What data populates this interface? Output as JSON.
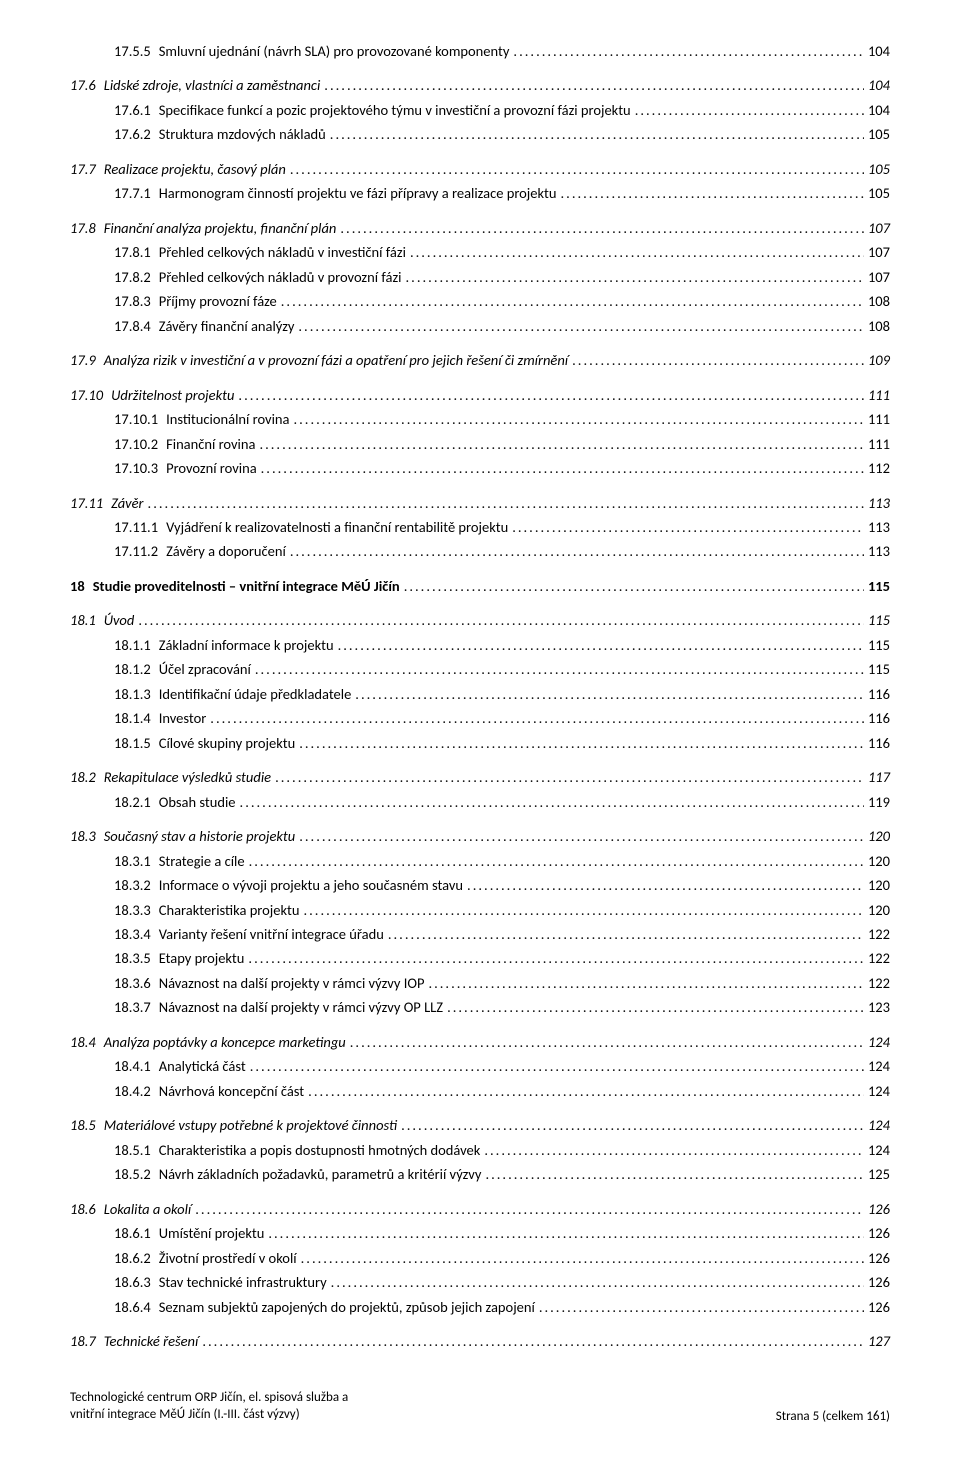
{
  "leader": "........................................................................................................................................................................................................................",
  "toc": [
    {
      "level": 3,
      "num": "17.5.5",
      "title": "Smluvní ujednání (návrh SLA) pro provozované komponenty",
      "page": "104",
      "gapBefore": false
    },
    {
      "level": 2,
      "num": "17.6",
      "title": "Lidské zdroje, vlastníci a zaměstnanci",
      "page": "104",
      "gapBefore": true
    },
    {
      "level": 3,
      "num": "17.6.1",
      "title": "Specifikace funkcí a pozic projektového týmu v investiční a provozní fázi projektu",
      "page": "104"
    },
    {
      "level": 3,
      "num": "17.6.2",
      "title": "Struktura mzdových nákladů",
      "page": "105"
    },
    {
      "level": 2,
      "num": "17.7",
      "title": "Realizace projektu, časový plán",
      "page": "105",
      "gapBefore": true
    },
    {
      "level": 3,
      "num": "17.7.1",
      "title": "Harmonogram činností projektu ve fázi přípravy a realizace projektu",
      "page": "105"
    },
    {
      "level": 2,
      "num": "17.8",
      "title": "Finanční analýza projektu, finanční plán",
      "page": "107",
      "gapBefore": true
    },
    {
      "level": 3,
      "num": "17.8.1",
      "title": "Přehled celkových nákladů v investiční fázi",
      "page": "107"
    },
    {
      "level": 3,
      "num": "17.8.2",
      "title": "Přehled celkových nákladů v provozní fázi",
      "page": "107"
    },
    {
      "level": 3,
      "num": "17.8.3",
      "title": "Příjmy provozní fáze",
      "page": "108"
    },
    {
      "level": 3,
      "num": "17.8.4",
      "title": "Závěry finanční analýzy",
      "page": "108"
    },
    {
      "level": 2,
      "num": "17.9",
      "title": "Analýza rizik v investiční a v provozní fázi a opatření pro jejich řešení či zmírnění",
      "page": "109",
      "gapBefore": true
    },
    {
      "level": 2,
      "num": "17.10",
      "title": "Udržitelnost projektu",
      "page": "111",
      "gapBefore": true
    },
    {
      "level": 3,
      "num": "17.10.1",
      "title": "Institucionální rovina",
      "page": "111"
    },
    {
      "level": 3,
      "num": "17.10.2",
      "title": "Finanční rovina",
      "page": "111"
    },
    {
      "level": 3,
      "num": "17.10.3",
      "title": "Provozní rovina",
      "page": "112"
    },
    {
      "level": 2,
      "num": "17.11",
      "title": "Závěr",
      "page": "113",
      "gapBefore": true
    },
    {
      "level": 3,
      "num": "17.11.1",
      "title": "Vyjádření k realizovatelnosti a finanční rentabilitě projektu",
      "page": "113"
    },
    {
      "level": 3,
      "num": "17.11.2",
      "title": "Závěry a doporučení",
      "page": "113"
    },
    {
      "level": 1,
      "num": "18",
      "title": "Studie proveditelnosti – vnitřní integrace MěÚ Jičín",
      "page": " 115",
      "gapBefore": true
    },
    {
      "level": 2,
      "num": "18.1",
      "title": "Úvod",
      "page": "115",
      "gapBefore": true
    },
    {
      "level": 3,
      "num": "18.1.1",
      "title": "Základní informace k projektu",
      "page": "115"
    },
    {
      "level": 3,
      "num": "18.1.2",
      "title": "Účel zpracování",
      "page": "115"
    },
    {
      "level": 3,
      "num": "18.1.3",
      "title": "Identifikační údaje předkladatele",
      "page": "116"
    },
    {
      "level": 3,
      "num": "18.1.4",
      "title": "Investor",
      "page": "116"
    },
    {
      "level": 3,
      "num": "18.1.5",
      "title": "Cílové skupiny projektu",
      "page": "116"
    },
    {
      "level": 2,
      "num": "18.2",
      "title": "Rekapitulace výsledků studie",
      "page": "117",
      "gapBefore": true
    },
    {
      "level": 3,
      "num": "18.2.1",
      "title": "Obsah studie",
      "page": "119"
    },
    {
      "level": 2,
      "num": "18.3",
      "title": "Současný stav a historie projektu",
      "page": "120",
      "gapBefore": true
    },
    {
      "level": 3,
      "num": "18.3.1",
      "title": "Strategie a cíle",
      "page": "120"
    },
    {
      "level": 3,
      "num": "18.3.2",
      "title": "Informace o vývoji projektu a jeho současném stavu",
      "page": "120"
    },
    {
      "level": 3,
      "num": "18.3.3",
      "title": "Charakteristika projektu",
      "page": "120"
    },
    {
      "level": 3,
      "num": "18.3.4",
      "title": "Varianty řešení vnitřní integrace úřadu",
      "page": "122"
    },
    {
      "level": 3,
      "num": "18.3.5",
      "title": "Etapy projektu",
      "page": "122"
    },
    {
      "level": 3,
      "num": "18.3.6",
      "title": "Návaznost na další projekty v rámci výzvy IOP",
      "page": "122"
    },
    {
      "level": 3,
      "num": "18.3.7",
      "title": "Návaznost na další projekty v rámci výzvy OP LLZ",
      "page": "123"
    },
    {
      "level": 2,
      "num": "18.4",
      "title": "Analýza poptávky a koncepce marketingu",
      "page": "124",
      "gapBefore": true
    },
    {
      "level": 3,
      "num": "18.4.1",
      "title": "Analytická část",
      "page": "124"
    },
    {
      "level": 3,
      "num": "18.4.2",
      "title": "Návrhová koncepční část",
      "page": "124"
    },
    {
      "level": 2,
      "num": "18.5",
      "title": "Materiálové vstupy potřebné k projektové činnosti",
      "page": "124",
      "gapBefore": true
    },
    {
      "level": 3,
      "num": "18.5.1",
      "title": "Charakteristika a popis dostupnosti hmotných dodávek",
      "page": "124"
    },
    {
      "level": 3,
      "num": "18.5.2",
      "title": "Návrh základních požadavků, parametrů a kritérií výzvy",
      "page": "125"
    },
    {
      "level": 2,
      "num": "18.6",
      "title": "Lokalita a okolí",
      "page": "126",
      "gapBefore": true
    },
    {
      "level": 3,
      "num": "18.6.1",
      "title": "Umístění projektu",
      "page": "126"
    },
    {
      "level": 3,
      "num": "18.6.2",
      "title": "Životní prostředí v okolí",
      "page": "126"
    },
    {
      "level": 3,
      "num": "18.6.3",
      "title": "Stav technické infrastruktury",
      "page": "126"
    },
    {
      "level": 3,
      "num": "18.6.4",
      "title": "Seznam subjektů zapojených do projektů, způsob jejich zapojení",
      "page": "126"
    },
    {
      "level": 2,
      "num": "18.7",
      "title": "Technické řešení",
      "page": "127",
      "gapBefore": true
    }
  ],
  "footer": {
    "left_line1": "Technologické centrum ORP Jičín, el. spisová služba a",
    "left_line2": "vnitřní integrace MěÚ Jičín (I.-III. část výzvy)",
    "right": "Strana 5 (celkem 161)"
  }
}
